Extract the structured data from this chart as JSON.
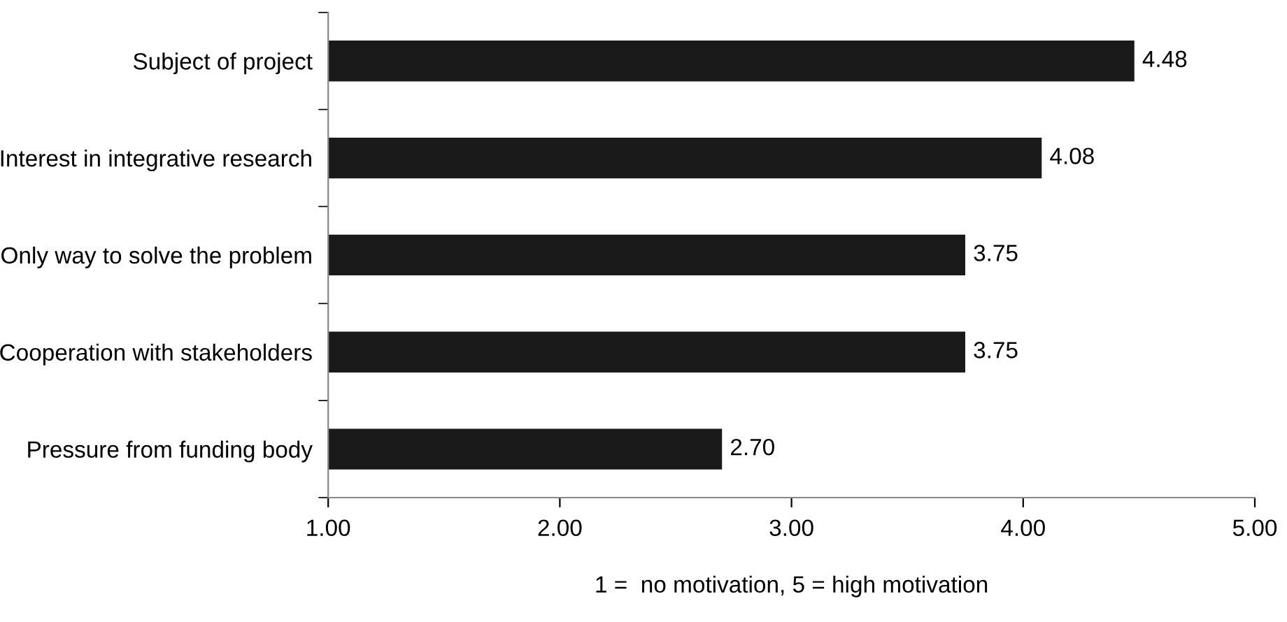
{
  "chart_data": {
    "type": "bar",
    "orientation": "horizontal",
    "xlabel": "1 =  no motivation, 5 = high motivation",
    "categories": [
      "Subject of project",
      "Interest in integrative research",
      "Only way to solve the problem",
      "Cooperation with stakeholders",
      "Pressure from funding body"
    ],
    "values": [
      4.48,
      4.08,
      3.75,
      3.75,
      2.7
    ],
    "value_labels": [
      "4.48",
      "4.08",
      "3.75",
      "3.75",
      "2.70"
    ],
    "color": "#1a1a1a",
    "xlim": [
      1,
      5
    ],
    "xticks": [
      {
        "value": 1,
        "label": "1.00"
      },
      {
        "value": 2,
        "label": "2.00"
      },
      {
        "value": 3,
        "label": "3.00"
      },
      {
        "value": 4,
        "label": "4.00"
      },
      {
        "value": 5,
        "label": "5.00"
      }
    ],
    "grid": false,
    "legend": false
  }
}
